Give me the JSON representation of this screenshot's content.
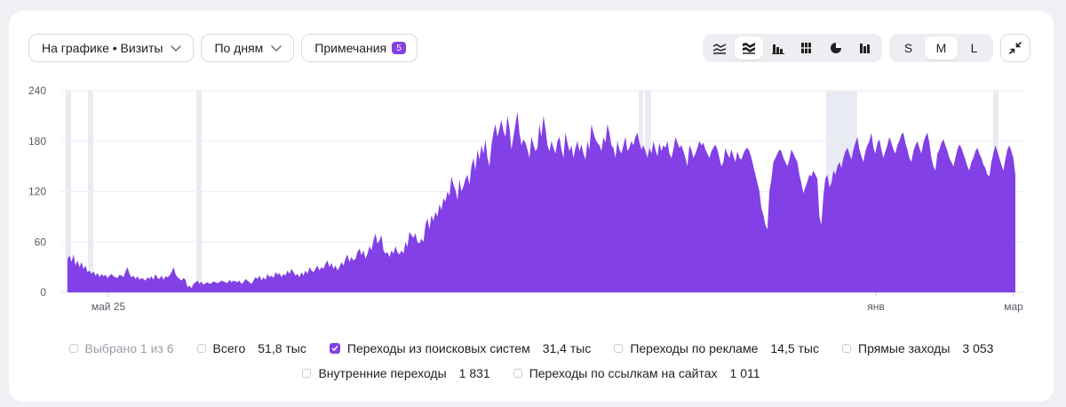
{
  "toolbar": {
    "chart_metric": "На графике • Визиты",
    "period": "По дням",
    "notes_label": "Примечания",
    "notes_count": "5"
  },
  "chart_types": [
    "line",
    "stacked-area",
    "bar",
    "stacked-bar",
    "pie",
    "column"
  ],
  "active_chart_type": "stacked-area",
  "sizes": [
    "S",
    "M",
    "L"
  ],
  "active_size": "M",
  "icons": {
    "collapse": "collapse-icon",
    "dropdown": "chevron-down-icon"
  },
  "colors": {
    "series": "#8240e6",
    "accent": "#8240e6",
    "note_band": "#e9ebf2"
  },
  "legend": {
    "selected": "Выбрано 1 из 6",
    "items": [
      {
        "name": "Всего",
        "value": "51,8 тыс",
        "checked": false
      },
      {
        "name": "Переходы из поисковых систем",
        "value": "31,4 тыс",
        "checked": true
      },
      {
        "name": "Переходы по рекламе",
        "value": "14,5 тыс",
        "checked": false
      },
      {
        "name": "Прямые заходы",
        "value": "3 053",
        "checked": false
      },
      {
        "name": "Внутренние переходы",
        "value": "1 831",
        "checked": false
      },
      {
        "name": "Переходы по ссылкам на сайтах",
        "value": "1 011",
        "checked": false
      }
    ]
  },
  "chart_data": {
    "type": "area",
    "y_ticks": [
      "0",
      "60",
      "120",
      "180",
      "240"
    ],
    "ylim": [
      0,
      240
    ],
    "x_labels": [
      "май 25",
      "янв",
      "мар"
    ],
    "grid": true,
    "series": [
      {
        "name": "Переходы из поисковых систем",
        "values": [
          40,
          44,
          36,
          45,
          32,
          38,
          30,
          36,
          28,
          32,
          24,
          26,
          22,
          25,
          20,
          23,
          18,
          22,
          19,
          21,
          17,
          20,
          22,
          19,
          18,
          17,
          21,
          20,
          18,
          25,
          30,
          22,
          18,
          20,
          16,
          19,
          15,
          17,
          16,
          14,
          18,
          16,
          19,
          15,
          22,
          17,
          16,
          20,
          15,
          19,
          18,
          20,
          24,
          30,
          22,
          18,
          16,
          14,
          17,
          15,
          6,
          8,
          5,
          10,
          12,
          14,
          10,
          13,
          9,
          11,
          12,
          10,
          11,
          13,
          12,
          11,
          12,
          14,
          13,
          12,
          11,
          15,
          12,
          14,
          13,
          12,
          14,
          10,
          12,
          16,
          14,
          12,
          10,
          14,
          18,
          16,
          20,
          14,
          18,
          15,
          22,
          18,
          20,
          17,
          24,
          21,
          23,
          18,
          22,
          20,
          26,
          22,
          28,
          24,
          20,
          22,
          18,
          24,
          20,
          26,
          22,
          30,
          26,
          24,
          28,
          32,
          26,
          30,
          28,
          34,
          38,
          30,
          35,
          28,
          32,
          26,
          30,
          36,
          32,
          40,
          45,
          36,
          42,
          38,
          40,
          48,
          52,
          44,
          50,
          40,
          46,
          55,
          50,
          62,
          70,
          58,
          62,
          68,
          50,
          46,
          48,
          42,
          50,
          46,
          55,
          48,
          45,
          50,
          46,
          60,
          54,
          72,
          68,
          65,
          70,
          60,
          58,
          64,
          60,
          80,
          88,
          75,
          92,
          85,
          96,
          90,
          105,
          98,
          112,
          108,
          120,
          115,
          138,
          128,
          122,
          110,
          134,
          120,
          126,
          135,
          140,
          128,
          150,
          160,
          145,
          170,
          158,
          175,
          165,
          182,
          160,
          150,
          175,
          190,
          200,
          185,
          195,
          205,
          192,
          185,
          210,
          196,
          170,
          185,
          200,
          215,
          190,
          175,
          182,
          178,
          170,
          160,
          185,
          176,
          168,
          172,
          200,
          185,
          210,
          195,
          175,
          168,
          180,
          172,
          165,
          180,
          185,
          170,
          160,
          190,
          178,
          168,
          175,
          160,
          172,
          180,
          168,
          176,
          165,
          158,
          180,
          170,
          200,
          190,
          182,
          178,
          175,
          168,
          185,
          178,
          200,
          190,
          175,
          172,
          160,
          180,
          170,
          165,
          175,
          185,
          168,
          172,
          180,
          175,
          185,
          190,
          178,
          170,
          175,
          168,
          160,
          172,
          165,
          180,
          170,
          162,
          178,
          168,
          175,
          172,
          180,
          165,
          160,
          170,
          185,
          178,
          172,
          175,
          168,
          160,
          150,
          175,
          170,
          160,
          165,
          172,
          180,
          175,
          178,
          170,
          165,
          160,
          168,
          172,
          176,
          170,
          160,
          150,
          155,
          172,
          165,
          160,
          170,
          162,
          155,
          168,
          160,
          158,
          165,
          170,
          172,
          168,
          160,
          150,
          140,
          130,
          120,
          100,
          92,
          80,
          75,
          120,
          135,
          155,
          160,
          165,
          170,
          168,
          160,
          155,
          150,
          158,
          170,
          165,
          160,
          155,
          140,
          130,
          118,
          125,
          132,
          140,
          138,
          145,
          140,
          135,
          90,
          80,
          115,
          135,
          140,
          125,
          130,
          145,
          140,
          150,
          155,
          148,
          160,
          168,
          172,
          165,
          158,
          170,
          178,
          185,
          170,
          162,
          155,
          168,
          175,
          180,
          190,
          172,
          165,
          178,
          182,
          170,
          160,
          168,
          175,
          185,
          178,
          170,
          165,
          175,
          180,
          188,
          190,
          178,
          170,
          160,
          155,
          168,
          175,
          180,
          172,
          165,
          178,
          185,
          190,
          178,
          160,
          150,
          145,
          165,
          170,
          178,
          182,
          175,
          168,
          160,
          155,
          150,
          160,
          170,
          176,
          172,
          165,
          158,
          150,
          145,
          155,
          160,
          168,
          172,
          165,
          160,
          152,
          148,
          140,
          138,
          155,
          165,
          175,
          168,
          160,
          152,
          145,
          158,
          170,
          175,
          168,
          160,
          140
        ]
      }
    ],
    "notes_highlighted_ranges": [
      "май 25",
      "янв"
    ]
  }
}
